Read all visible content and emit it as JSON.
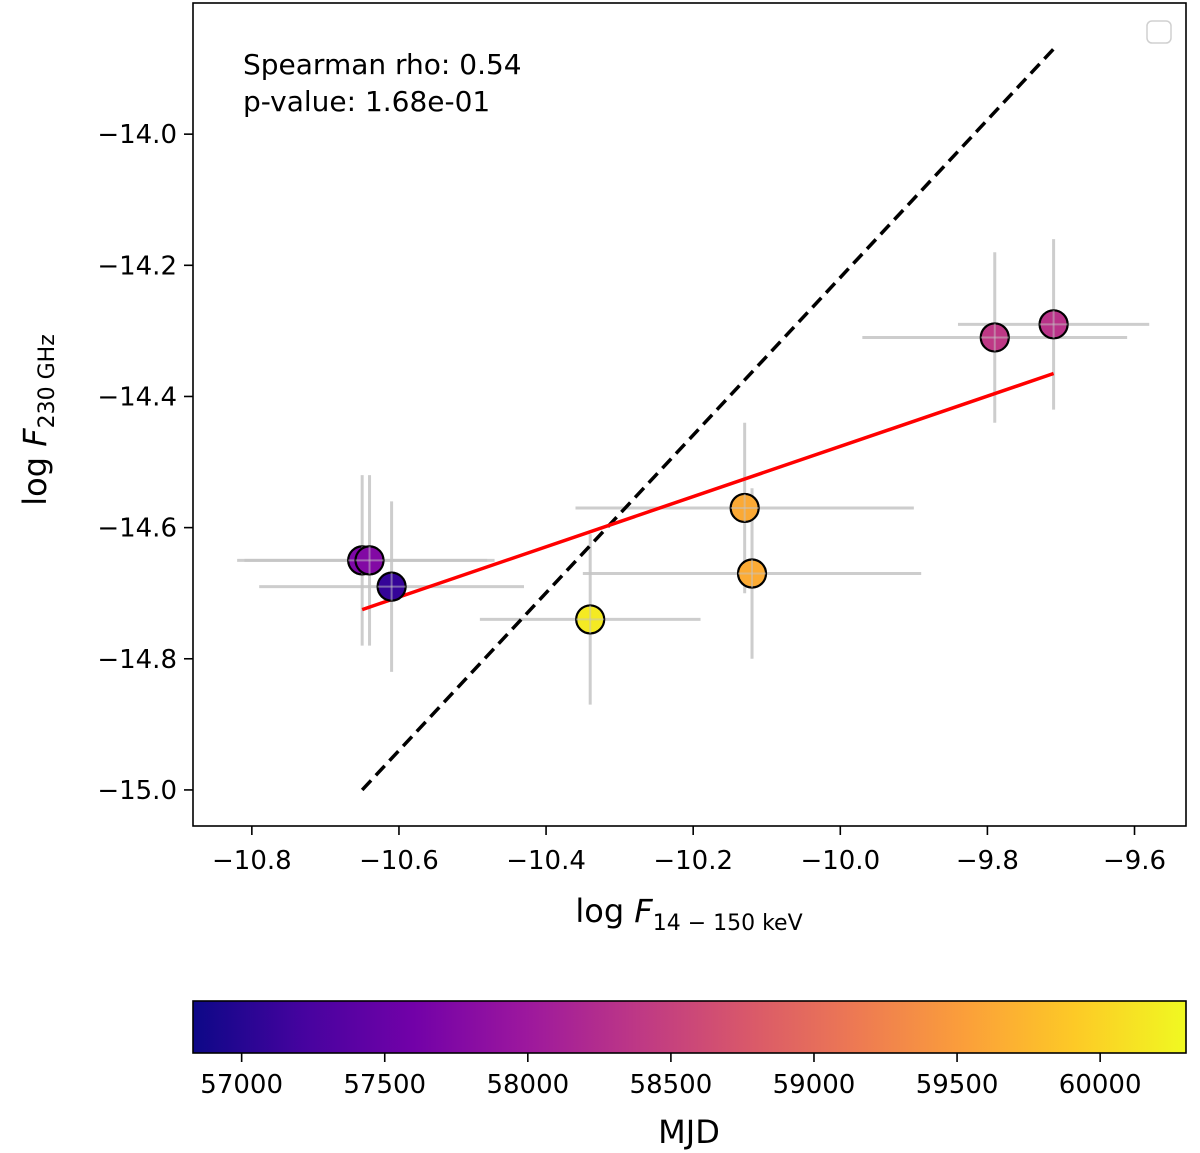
{
  "chart_data": {
    "type": "scatter",
    "x_range": [
      -10.88,
      -9.53
    ],
    "y_range": [
      -15.055,
      -13.8
    ],
    "x_ticks": [
      -10.8,
      -10.6,
      -10.4,
      -10.2,
      -10.0,
      -9.8,
      -9.6
    ],
    "x_tick_labels": [
      "−10.8",
      "−10.6",
      "−10.4",
      "−10.2",
      "−10.0",
      "−9.8",
      "−9.6"
    ],
    "y_ticks": [
      -14.0,
      -14.2,
      -14.4,
      -14.6,
      -14.8,
      -15.0
    ],
    "y_tick_labels": [
      "−14.0",
      "−14.2",
      "−14.4",
      "−14.6",
      "−14.8",
      "−15.0"
    ],
    "xlabel": {
      "prefix": "log ",
      "var": "F",
      "sub": "14 − 150 keV"
    },
    "ylabel": {
      "prefix": "log ",
      "var": "F",
      "sub": "230 GHz"
    },
    "annotation": {
      "line1": "Spearman rho: 0.54",
      "line2": "p-value: 1.68e-01"
    },
    "legend": "top-right (empty)",
    "points": [
      {
        "x": -10.65,
        "y": -14.65,
        "xerr": [
          0.17,
          0.17
        ],
        "yerr": [
          0.13,
          0.13
        ],
        "mjd": 57700
      },
      {
        "x": -10.64,
        "y": -14.65,
        "xerr": [
          0.17,
          0.17
        ],
        "yerr": [
          0.13,
          0.13
        ],
        "mjd": 57750
      },
      {
        "x": -10.61,
        "y": -14.69,
        "xerr": [
          0.18,
          0.18
        ],
        "yerr": [
          0.13,
          0.13
        ],
        "mjd": 57100
      },
      {
        "x": -10.34,
        "y": -14.74,
        "xerr": [
          0.15,
          0.15
        ],
        "yerr": [
          0.13,
          0.13
        ],
        "mjd": 60180
      },
      {
        "x": -10.13,
        "y": -14.57,
        "xerr": [
          0.23,
          0.23
        ],
        "yerr": [
          0.13,
          0.13
        ],
        "mjd": 59620
      },
      {
        "x": -10.12,
        "y": -14.67,
        "xerr": [
          0.23,
          0.23
        ],
        "yerr": [
          0.13,
          0.13
        ],
        "mjd": 59640
      },
      {
        "x": -9.79,
        "y": -14.31,
        "xerr": [
          0.18,
          0.18
        ],
        "yerr": [
          0.13,
          0.13
        ],
        "mjd": 58380
      },
      {
        "x": -9.71,
        "y": -14.29,
        "xerr": [
          0.13,
          0.13
        ],
        "yerr": [
          0.13,
          0.13
        ],
        "mjd": 58330
      }
    ],
    "fit_line": {
      "x": [
        -10.65,
        -9.71
      ],
      "y": [
        -14.725,
        -14.365
      ],
      "color": "#ff0000"
    },
    "reference_line": {
      "x": [
        -10.65,
        -9.71
      ],
      "y": [
        -15.0,
        -13.87
      ],
      "color": "#000000",
      "style": "dashed"
    },
    "colorbar": {
      "label": "MJD",
      "range": [
        56830,
        60300
      ],
      "ticks": [
        57000,
        57500,
        58000,
        58500,
        59000,
        59500,
        60000
      ],
      "tick_labels": [
        "57000",
        "57500",
        "58000",
        "58500",
        "59000",
        "59500",
        "60000"
      ],
      "colormap": "plasma",
      "colors": [
        "#0d0887",
        "#46039f",
        "#7201a8",
        "#9c179e",
        "#bd3786",
        "#d8576b",
        "#ed7953",
        "#fb9f3a",
        "#fdca26",
        "#f0f921"
      ]
    },
    "errorbar_color": "#c4c4c4",
    "marker_edge_color": "#000000"
  }
}
